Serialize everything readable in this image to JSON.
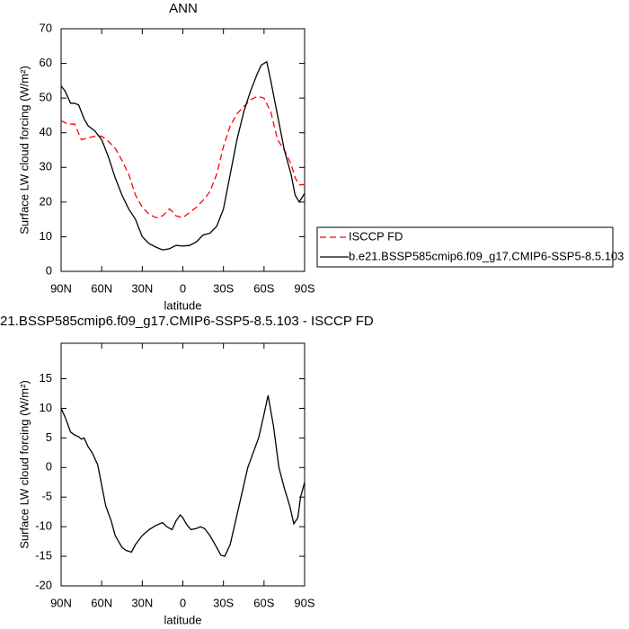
{
  "charts": [
    {
      "type": "line",
      "title": "ANN",
      "xlabel": "latitude",
      "ylabel": "Surface LW cloud forcing (W/m²)",
      "xlim": [
        90,
        -90
      ],
      "xticks": [
        {
          "value": 90,
          "label": "90N"
        },
        {
          "value": 60,
          "label": "60N"
        },
        {
          "value": 30,
          "label": "30N"
        },
        0,
        {
          "value": -30,
          "label": "30S"
        },
        {
          "value": -60,
          "label": "60S"
        },
        {
          "value": -90,
          "label": "90S"
        }
      ],
      "ylim": [
        0,
        70
      ],
      "yticks": [
        0,
        10,
        20,
        30,
        40,
        50,
        60,
        70
      ],
      "legend": "right",
      "series": [
        {
          "name": "ISCCP FD",
          "color": "#ff0000",
          "linestyle": "dashed",
          "x": [
            90,
            85,
            80,
            75,
            70,
            65,
            60,
            55,
            50,
            45,
            40,
            35,
            30,
            25,
            20,
            15,
            10,
            7,
            5,
            0,
            -5,
            -10,
            -15,
            -20,
            -25,
            -30,
            -35,
            -40,
            -45,
            -50,
            -55,
            -60,
            -65,
            -70,
            -75,
            -80,
            -83,
            -86,
            -90
          ],
          "values": [
            43.5,
            42.5,
            42.5,
            38,
            38.5,
            39,
            39,
            37.5,
            35.5,
            32,
            28,
            22,
            18.5,
            16.5,
            15.5,
            16,
            18,
            17,
            16,
            15.5,
            17,
            18.5,
            20.5,
            23,
            28,
            36,
            42,
            45.5,
            47.5,
            49.5,
            50.5,
            50,
            46,
            38,
            35,
            31,
            27,
            25,
            25
          ]
        },
        {
          "name": "b.e21.BSSP585cmip6.f09_g17.CMIP6-SSP5-8.5.103",
          "color": "#000000",
          "linestyle": "solid",
          "x": [
            90,
            87,
            83,
            80,
            77,
            73,
            70,
            65,
            60,
            55,
            50,
            45,
            40,
            35,
            30,
            25,
            20,
            15,
            10,
            5,
            0,
            -5,
            -10,
            -15,
            -20,
            -25,
            -30,
            -35,
            -40,
            -45,
            -50,
            -55,
            -58,
            -62,
            -65,
            -70,
            -75,
            -80,
            -83,
            -86,
            -90
          ],
          "values": [
            53.5,
            52,
            48.5,
            48.5,
            48,
            44,
            42,
            40.5,
            38,
            33,
            27,
            22,
            18,
            15,
            10,
            8,
            7,
            6.2,
            6.5,
            7.5,
            7.3,
            7.5,
            8.5,
            10.5,
            11,
            13,
            18,
            28,
            38,
            46,
            52,
            57,
            59.5,
            60.5,
            55,
            45,
            35,
            28,
            22,
            20,
            22.5
          ]
        }
      ]
    },
    {
      "type": "line",
      "title": "21.BSSP585cmip6.f09_g17.CMIP6-SSP5-8.5.103 - ISCCP FD",
      "xlabel": "latitude",
      "ylabel": "Surface LW cloud forcing (W/m²)",
      "xlim": [
        90,
        -90
      ],
      "xticks": [
        {
          "value": 90,
          "label": "90N"
        },
        {
          "value": 60,
          "label": "60N"
        },
        {
          "value": 30,
          "label": "30N"
        },
        0,
        {
          "value": -30,
          "label": "30S"
        },
        {
          "value": -60,
          "label": "60S"
        },
        {
          "value": -90,
          "label": "90S"
        }
      ],
      "ylim": [
        -20,
        21
      ],
      "yticks": [
        -20,
        -15,
        -10,
        -5,
        0,
        5,
        10,
        15
      ],
      "series": [
        {
          "color": "#000000",
          "linestyle": "solid",
          "x": [
            90,
            87,
            83,
            80,
            77,
            75,
            73,
            70,
            67,
            63,
            60,
            57,
            53,
            50,
            45,
            42,
            38,
            35,
            30,
            25,
            20,
            15,
            12,
            8,
            5,
            2,
            0,
            -3,
            -6,
            -10,
            -13,
            -16,
            -20,
            -25,
            -28,
            -31,
            -35,
            -40,
            -45,
            -48,
            -52,
            -56,
            -60,
            -63,
            -67,
            -71,
            -75,
            -79,
            -82,
            -85,
            -87,
            -90
          ],
          "values": [
            10,
            8.5,
            6,
            5.5,
            5.2,
            4.8,
            5,
            3.5,
            2.5,
            0.5,
            -3,
            -6.5,
            -9,
            -11.5,
            -13.5,
            -14,
            -14.3,
            -13,
            -11.5,
            -10.5,
            -9.8,
            -9.3,
            -10,
            -10.5,
            -9,
            -8,
            -8.5,
            -9.7,
            -10.5,
            -10.3,
            -10,
            -10.3,
            -11.5,
            -13.5,
            -14.8,
            -15,
            -13,
            -8,
            -3,
            0,
            2.5,
            5,
            9,
            12.2,
            7,
            0,
            -3.5,
            -6.5,
            -9.5,
            -8.5,
            -5,
            -2.5
          ]
        }
      ]
    }
  ]
}
